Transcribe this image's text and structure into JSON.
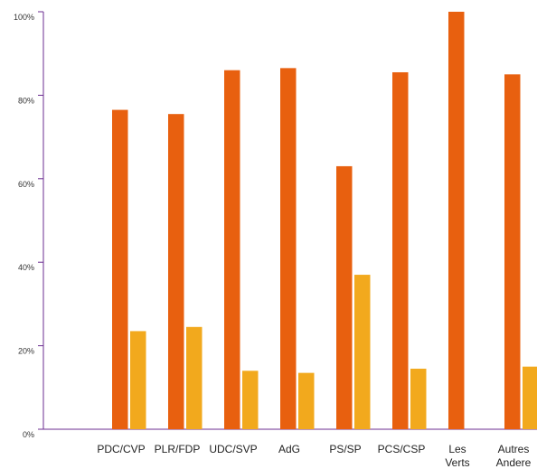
{
  "colors": {
    "series_a": "#E8600F",
    "series_b": "#F2A91D",
    "axis": "#6B2C91"
  },
  "chart_data": {
    "type": "bar",
    "categories": [
      "PDC/CVP",
      "PLR/FDP",
      "UDC/SVP",
      "AdG",
      "PS/SP",
      "PCS/CSP",
      "Les Verts",
      "Autres Andere"
    ],
    "category_lines": [
      [
        "PDC/CVP"
      ],
      [
        "PLR/FDP"
      ],
      [
        "UDC/SVP"
      ],
      [
        "AdG"
      ],
      [
        "PS/SP"
      ],
      [
        "PCS/CSP"
      ],
      [
        "Les",
        "Verts"
      ],
      [
        "Autres",
        "Andere"
      ]
    ],
    "series": [
      {
        "values": [
          76.5,
          75.5,
          86,
          86.5,
          63,
          85.5,
          100,
          85
        ]
      },
      {
        "values": [
          23.5,
          24.5,
          14,
          13.5,
          37,
          14.5,
          0,
          15
        ]
      }
    ],
    "yticks": [
      "0%",
      "20%",
      "40%",
      "60%",
      "80%",
      "100%"
    ],
    "ylim": [
      0,
      100
    ],
    "grid": false,
    "legend": "none"
  }
}
